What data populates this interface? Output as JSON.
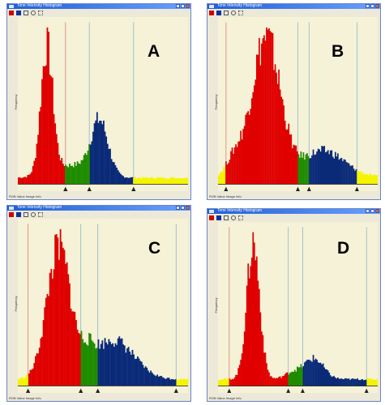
{
  "panels": [
    {
      "letter": "A",
      "window_title": "Tone Intensity Histogram",
      "status": "RGB Value     Image Info",
      "series": [
        {
          "mu": 0.17,
          "sigma": 0.035,
          "amp": 1.0
        },
        {
          "mu": 0.48,
          "sigma": 0.05,
          "amp": 0.42
        },
        {
          "mu": 0.32,
          "sigma": 0.12,
          "amp": 0.1
        }
      ],
      "dividers": [
        0.28,
        0.42,
        0.68
      ],
      "colors": {
        "low": "#f4f400",
        "shadow": "#e00000",
        "mid": "#1f8c00",
        "high": "#0a2a78"
      }
    },
    {
      "letter": "B",
      "window_title": "Tone Intensity Histogram",
      "status": "RGB Value     Image Info",
      "series": [
        {
          "mu": 0.3,
          "sigma": 0.09,
          "amp": 1.0
        },
        {
          "mu": 0.66,
          "sigma": 0.13,
          "amp": 0.19
        },
        {
          "mu": 0.1,
          "sigma": 0.05,
          "amp": 0.12
        }
      ],
      "dividers": [
        0.05,
        0.5,
        0.57,
        0.87
      ],
      "colors": {
        "low": "#f4f400",
        "shadow": "#e00000",
        "mid": "#1f8c00",
        "high": "#0a2a78"
      }
    },
    {
      "letter": "C",
      "window_title": "Tone Intensity Histogram",
      "status": "RGB Value     Image Info",
      "series": [
        {
          "mu": 0.24,
          "sigma": 0.07,
          "amp": 1.0
        },
        {
          "mu": 0.56,
          "sigma": 0.12,
          "amp": 0.3
        },
        {
          "mu": 0.41,
          "sigma": 0.04,
          "amp": 0.12
        }
      ],
      "dividers": [
        0.06,
        0.37,
        0.47,
        0.93
      ],
      "colors": {
        "low": "#f4f400",
        "shadow": "#e00000",
        "mid": "#1f8c00",
        "high": "#0a2a78"
      }
    },
    {
      "letter": "D",
      "window_title": "Tone Intensity Histogram",
      "status": "RGB Value     Image Info",
      "series": [
        {
          "mu": 0.22,
          "sigma": 0.04,
          "amp": 1.0
        },
        {
          "mu": 0.6,
          "sigma": 0.06,
          "amp": 0.15
        },
        {
          "mu": 0.47,
          "sigma": 0.05,
          "amp": 0.05
        }
      ],
      "dividers": [
        0.07,
        0.44,
        0.53,
        0.93
      ],
      "colors": {
        "low": "#f4f400",
        "shadow": "#e00000",
        "mid": "#1f8c00",
        "high": "#0a2a78"
      }
    }
  ],
  "ylabel": "Frequency",
  "ui_colors": {
    "frame": "#ece9d8",
    "plot_bg": "#f5f2d7"
  },
  "icons": [
    "tool-red-icon",
    "tool-blue-icon",
    "tool-select-icon",
    "tool-zoom-icon",
    "tool-settings-icon"
  ]
}
